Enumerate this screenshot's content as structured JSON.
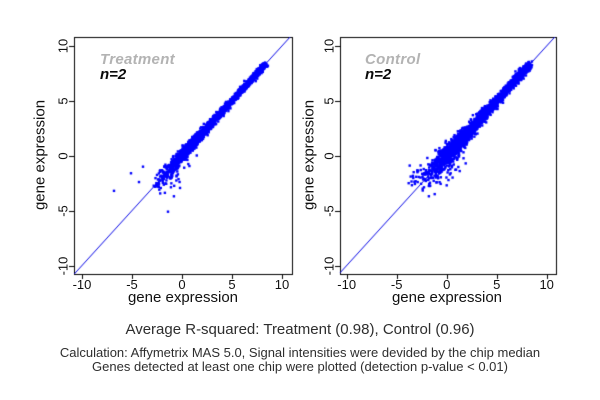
{
  "colors": {
    "point_blue": "#0000FF",
    "line_blue": "#0000E6",
    "axis_black": "#000000",
    "panel_title_gray": "#b3b3b3",
    "text_dark": "#2e2e2e"
  },
  "caption": "Average R-squared: Treatment (0.98), Control (0.96)",
  "footnotes": [
    "Calculation: Affymetrix MAS 5.0, Signal intensities were devided by the chip median",
    "Genes detected at least one chip were plotted (detection p-value < 0.01)"
  ],
  "chart_data": {
    "type": "scatter",
    "panels": [
      {
        "id": "treatment",
        "title": "Treatment",
        "annotation": "n=2",
        "r_squared": 0.98,
        "xlabel": "gene expression",
        "ylabel": "gene expression",
        "xlim": [
          -10.8,
          11.0
        ],
        "ylim": [
          -10.8,
          10.8
        ],
        "xticks": [
          -10,
          -5,
          0,
          5,
          10
        ],
        "yticks": [
          -10,
          -5,
          0,
          5,
          10
        ],
        "identity_line": true,
        "seed": 20,
        "cloud": {
          "count": 2400,
          "components": [
            {
              "w": 0.5,
              "mean": 1.0,
              "sd": 1.5,
              "clip": [
                -2.5,
                4.5
              ]
            },
            {
              "w": 0.35,
              "mean": 3.8,
              "sd": 2.0,
              "clip": [
                0.0,
                8.3
              ]
            },
            {
              "w": 0.15,
              "tip": 8.35,
              "sd": 1.3,
              "clip": [
                4.5,
                8.35
              ]
            }
          ],
          "noise": {
            "base": 0.11,
            "amp": 0.26,
            "decay": 2.8,
            "offset": 2.5
          }
        },
        "fringe": {
          "count": 55,
          "t_range": [
            -2.4,
            0.5
          ],
          "x_sd": 0.5,
          "y_sd": 0.9,
          "y_shift": -0.1
        },
        "satellites": {
          "count": 0,
          "x_mean": 0,
          "x_sd": 0,
          "dy_base": 0,
          "dy_sd": 0
        },
        "outliers": [
          [
            -6.8,
            -3.2
          ],
          [
            -5.1,
            -1.6
          ],
          [
            -4.3,
            -2.4
          ],
          [
            -3.9,
            -1.0
          ],
          [
            -1.4,
            -5.1
          ]
        ]
      },
      {
        "id": "control",
        "title": "Control",
        "annotation": "n=2",
        "r_squared": 0.96,
        "xlabel": "gene expression",
        "ylabel": "gene expression",
        "xlim": [
          -10.8,
          11.0
        ],
        "ylim": [
          -10.8,
          10.8
        ],
        "xticks": [
          -10,
          -5,
          0,
          5,
          10
        ],
        "yticks": [
          -10,
          -5,
          0,
          5,
          10
        ],
        "identity_line": true,
        "seed": 77,
        "cloud": {
          "count": 2400,
          "components": [
            {
              "w": 0.5,
              "mean": 1.0,
              "sd": 1.5,
              "clip": [
                -2.2,
                4.5
              ]
            },
            {
              "w": 0.35,
              "mean": 3.8,
              "sd": 2.0,
              "clip": [
                -0.5,
                8.25
              ]
            },
            {
              "w": 0.15,
              "tip": 8.3,
              "sd": 1.3,
              "clip": [
                4.5,
                8.3
              ]
            }
          ],
          "noise": {
            "base": 0.16,
            "amp": 0.4,
            "decay": 3.2,
            "offset": 2.5
          }
        },
        "fringe": {
          "count": 75,
          "t_range": [
            -2.0,
            1.2
          ],
          "x_sd": 0.6,
          "y_sd": 1.0,
          "y_shift": -0.1
        },
        "satellites": {
          "count": 16,
          "x_mean": -2.9,
          "x_sd": 0.45,
          "dy_base": 0.6,
          "dy_sd": 0.8
        },
        "outliers": [
          [
            -3.7,
            -0.9
          ],
          [
            -3.6,
            -1.9
          ],
          [
            -3.3,
            -1.5
          ],
          [
            -2.9,
            -2.4
          ],
          [
            -2.4,
            -3.0
          ],
          [
            -1.2,
            -3.5
          ],
          [
            0.0,
            -2.7
          ],
          [
            1.3,
            -1.4
          ],
          [
            1.9,
            -0.7
          ]
        ]
      }
    ]
  }
}
